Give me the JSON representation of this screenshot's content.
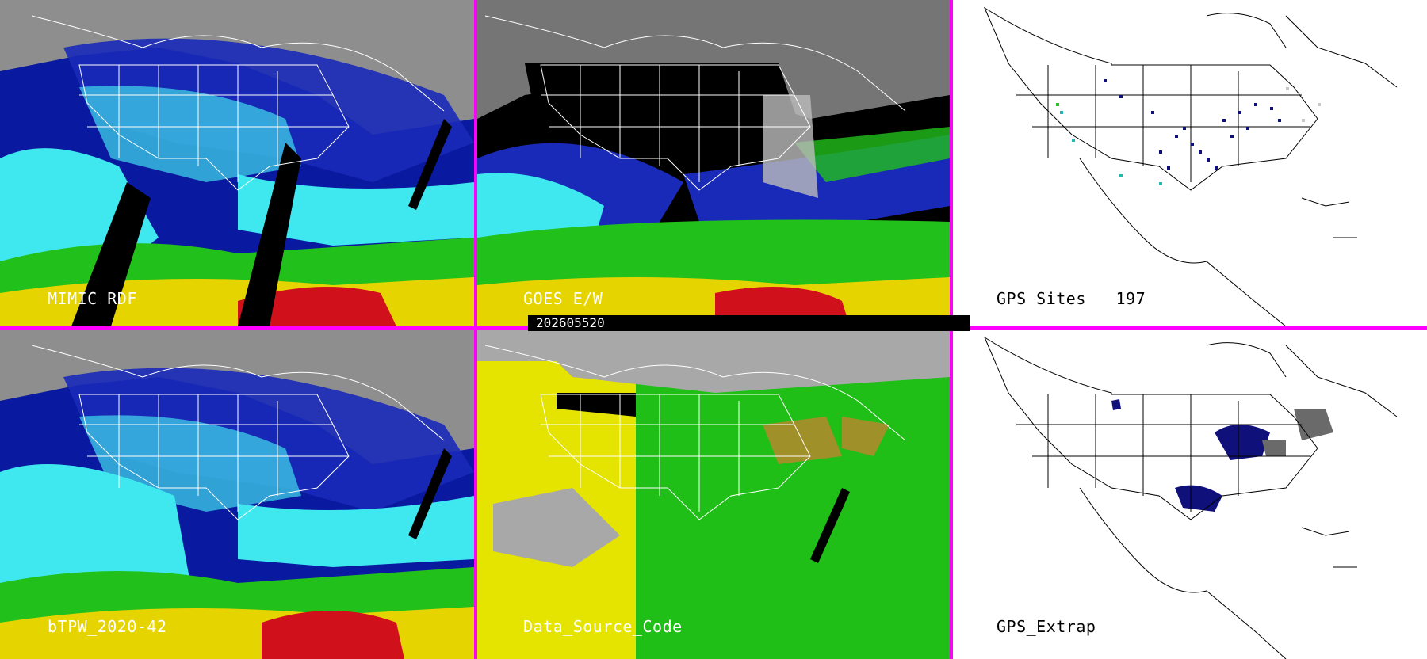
{
  "colors": {
    "divider": "#ff00ff",
    "land_gray": "#9a9a9a",
    "deep_blue": "#0a1aa0",
    "blue": "#1f4fe0",
    "cyan": "#3fe8ef",
    "green": "#22c01a",
    "yellow": "#e6d400",
    "red": "#d0101a",
    "source_yellow": "#e4e400",
    "source_green": "#1fbf17",
    "source_gray": "#a8a8a8",
    "source_olive": "#a0902a",
    "gps_navy": "#10107a",
    "gps_teal": "#20b8b0"
  },
  "panels": [
    {
      "id": "mimic-rdf",
      "label": "MIMIC RDF",
      "type": "tpw-image"
    },
    {
      "id": "goes-ew",
      "label": "GOES E/W",
      "type": "tpw-image-masked"
    },
    {
      "id": "gps-sites",
      "label": "GPS Sites   197",
      "type": "station-map"
    },
    {
      "id": "btpw",
      "label": "bTPW_2020-42",
      "type": "tpw-image"
    },
    {
      "id": "data-source-code",
      "label": "Data_Source_Code",
      "type": "source-map"
    },
    {
      "id": "gps-extrap",
      "label": "GPS_Extrap",
      "type": "station-map-extrap"
    }
  ],
  "timestamp": "202605520"
}
